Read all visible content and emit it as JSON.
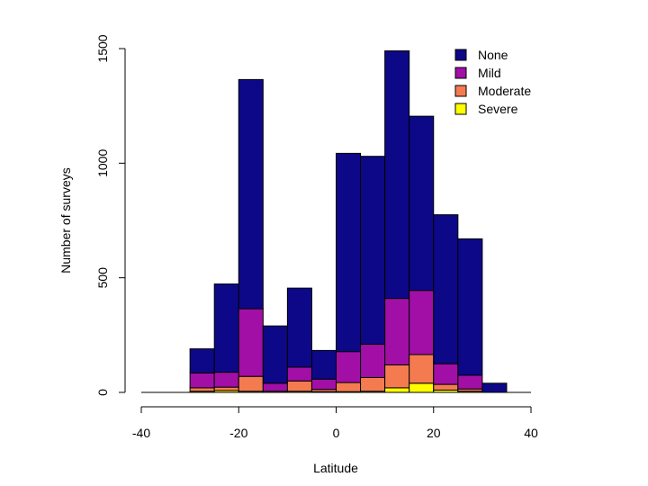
{
  "chart_data": {
    "type": "bar",
    "stacked": true,
    "xlabel": "Latitude",
    "ylabel": "Number of surveys",
    "xlim": [
      -40,
      40
    ],
    "ylim": [
      0,
      1500
    ],
    "xticks": [
      "-40",
      "-20",
      "0",
      "20",
      "40"
    ],
    "yticks": [
      "0",
      "500",
      "1000",
      "1500"
    ],
    "bin_width": 5,
    "bins": [
      -30,
      -25,
      -20,
      -15,
      -10,
      -5,
      0,
      5,
      10,
      15,
      20,
      25,
      30
    ],
    "legend_position": "top-right",
    "series": [
      {
        "name": "Severe",
        "color": "#ffff00",
        "values": [
          5,
          8,
          5,
          0,
          5,
          3,
          3,
          5,
          20,
          40,
          10,
          5,
          0
        ]
      },
      {
        "name": "Moderate",
        "color": "#f47b50",
        "values": [
          15,
          15,
          65,
          5,
          45,
          10,
          40,
          60,
          100,
          125,
          25,
          10,
          0
        ]
      },
      {
        "name": "Mild",
        "color": "#a10fa6",
        "values": [
          65,
          65,
          295,
          35,
          60,
          45,
          135,
          145,
          290,
          280,
          90,
          60,
          0
        ]
      },
      {
        "name": "None",
        "color": "#0d0887",
        "values": [
          105,
          385,
          1000,
          250,
          345,
          125,
          865,
          820,
          1080,
          760,
          650,
          595,
          40
        ]
      }
    ],
    "legend_order": [
      "None",
      "Mild",
      "Moderate",
      "Severe"
    ]
  }
}
